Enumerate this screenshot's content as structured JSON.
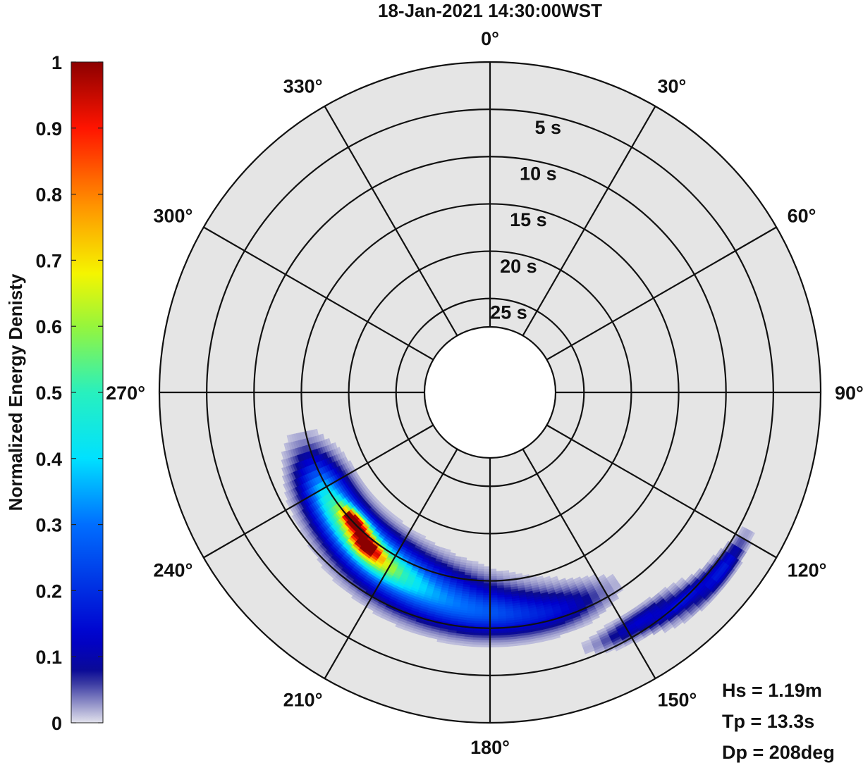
{
  "title": "18-Jan-2021 14:30:00WST",
  "colorbar_label": "Normalized Energy Denisty",
  "stats": {
    "hs": "Hs = 1.19m",
    "tp": "Tp = 13.3s",
    "dp": "Dp = 208deg"
  },
  "chart_data": {
    "type": "heatmap",
    "subtype": "polar-directional-wave-spectrum",
    "title": "18-Jan-2021 14:30:00WST",
    "direction_ticks": [
      "0°",
      "30°",
      "60°",
      "90°",
      "120°",
      "150°",
      "180°",
      "210°",
      "240°",
      "270°",
      "300°",
      "330°"
    ],
    "direction_tick_values": [
      0,
      30,
      60,
      90,
      120,
      150,
      180,
      210,
      240,
      270,
      300,
      330
    ],
    "period_rings": [
      5,
      10,
      15,
      20,
      25
    ],
    "period_ring_labels": [
      "5 s",
      "10 s",
      "15 s",
      "20 s",
      "25 s"
    ],
    "period_range": [
      0,
      28
    ],
    "colorbar": {
      "label": "Normalized Energy Denisty",
      "range": [
        0,
        1
      ],
      "ticks": [
        0,
        0.1,
        0.2,
        0.3,
        0.4,
        0.5,
        0.6,
        0.7,
        0.8,
        0.9,
        1
      ],
      "tick_labels": [
        "0",
        "0.1",
        "0.2",
        "0.3",
        "0.4",
        "0.5",
        "0.6",
        "0.7",
        "0.8",
        "0.9",
        "1"
      ],
      "colormap": "jet-with-light-lowend"
    },
    "energy_blobs": [
      {
        "dir_center": 228,
        "period_center": 14.5,
        "dir_spread": 11,
        "period_spread": 1.4,
        "amplitude": 0.36
      },
      {
        "dir_center": 213,
        "period_center": 13.8,
        "dir_spread": 13,
        "period_spread": 1.7,
        "amplitude": 0.3
      },
      {
        "dir_center": 196,
        "period_center": 12.6,
        "dir_spread": 13,
        "period_spread": 1.7,
        "amplitude": 0.22
      },
      {
        "dir_center": 178,
        "period_center": 11.4,
        "dir_spread": 11,
        "period_spread": 1.4,
        "amplitude": 0.17
      },
      {
        "dir_center": 162,
        "period_center": 10.6,
        "dir_spread": 8,
        "period_spread": 1.1,
        "amplitude": 0.09
      },
      {
        "dir_center": 240,
        "period_center": 14.9,
        "dir_spread": 7,
        "period_spread": 1.5,
        "amplitude": 0.17
      },
      {
        "dir_center": 226,
        "period_center": 15.3,
        "dir_spread": 4,
        "period_spread": 0.6,
        "amplitude": 0.55
      },
      {
        "dir_center": 219,
        "period_center": 14.2,
        "dir_spread": 3,
        "period_spread": 0.55,
        "amplitude": 0.6
      },
      {
        "dir_center": 215,
        "period_center": 13.6,
        "dir_spread": 7,
        "period_spread": 1.0,
        "amplitude": 0.2
      },
      {
        "dir_center": 147,
        "period_center": 6.0,
        "dir_spread": 6,
        "period_spread": 0.7,
        "amplitude": 0.13
      },
      {
        "dir_center": 137,
        "period_center": 4.9,
        "dir_spread": 5,
        "period_spread": 0.55,
        "amplitude": 0.15
      },
      {
        "dir_center": 127,
        "period_center": 4.2,
        "dir_spread": 4,
        "period_spread": 0.55,
        "amplitude": 0.14
      },
      {
        "dir_center": 131,
        "period_center": 3.6,
        "dir_spread": 6,
        "period_spread": 0.45,
        "amplitude": 0.06
      }
    ],
    "peak": {
      "direction": 227,
      "period": 15.0,
      "value": 1.0
    },
    "Hs_m": 1.19,
    "Tp_s": 13.3,
    "Dp_deg": 208
  }
}
